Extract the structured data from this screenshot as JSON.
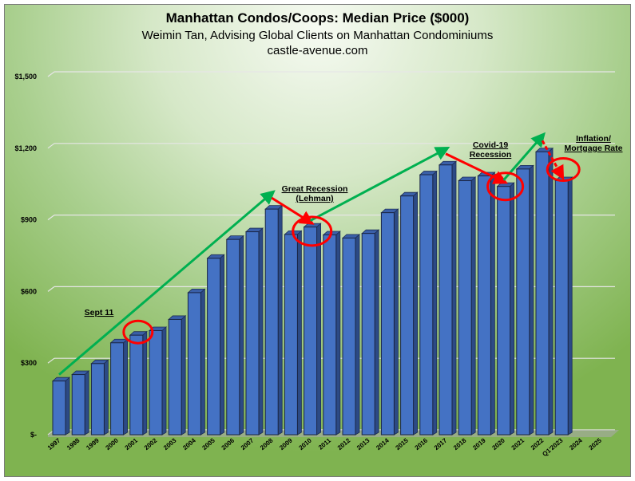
{
  "chart_data": {
    "type": "bar",
    "title": "Manhattan Condos/Coops: Median Price ($000)",
    "subtitle": "Weimin Tan, Advising Global Clients on Manhattan Condominiums",
    "source": "castle-avenue.com",
    "categories": [
      "1997",
      "1998",
      "1999",
      "2000",
      "2001",
      "2002",
      "2003",
      "2004",
      "2005",
      "2006",
      "2007",
      "2008",
      "2009",
      "2010",
      "2011",
      "2012",
      "2013",
      "2014",
      "2015",
      "2016",
      "2017",
      "2018",
      "2019",
      "2020",
      "2021",
      "2022",
      "Q1'2023",
      "2024",
      "2025"
    ],
    "values": [
      245,
      272,
      318,
      405,
      437,
      456,
      503,
      615,
      759,
      838,
      870,
      965,
      859,
      890,
      857,
      844,
      863,
      950,
      1020,
      1109,
      1150,
      1084,
      1104,
      1060,
      1133,
      1205,
      1084,
      null,
      null
    ],
    "ylim": [
      0,
      1500
    ],
    "yticks": [
      0,
      300,
      600,
      900,
      1200,
      1500
    ],
    "ytick_labels": [
      "$-",
      "$300",
      "$600",
      "$900",
      "$1,200",
      "$1,500"
    ],
    "grid": true,
    "bar_color": "#4472c4",
    "annotations": [
      {
        "text": "Sept 11",
        "circle": "2001"
      },
      {
        "text": "Great Recession (Lehman)",
        "lines": [
          "Great Recession",
          "(Lehman)"
        ],
        "circle": "2009-2010"
      },
      {
        "text": "Covid-19 Recession",
        "lines": [
          "Covid-19",
          "Recession"
        ],
        "circle": "2020"
      },
      {
        "text": "Inflation/ Mortgage Rate",
        "lines": [
          "Inflation/",
          "Mortgage Rate"
        ],
        "circle": "Q1'2023"
      }
    ],
    "trend_arrows": [
      {
        "from": "1997",
        "to": "2008",
        "color": "#00b050"
      },
      {
        "from": "2008",
        "to": "2010",
        "color": "#ff0000"
      },
      {
        "from": "2010",
        "to": "2017",
        "color": "#00b050"
      },
      {
        "from": "2017",
        "to": "2020",
        "color": "#ff0000"
      },
      {
        "from": "2020",
        "to": "2022",
        "color": "#00b050"
      },
      {
        "from": "2022",
        "to": "Q1'2023",
        "color": "#ff0000",
        "dashed": true
      }
    ]
  }
}
